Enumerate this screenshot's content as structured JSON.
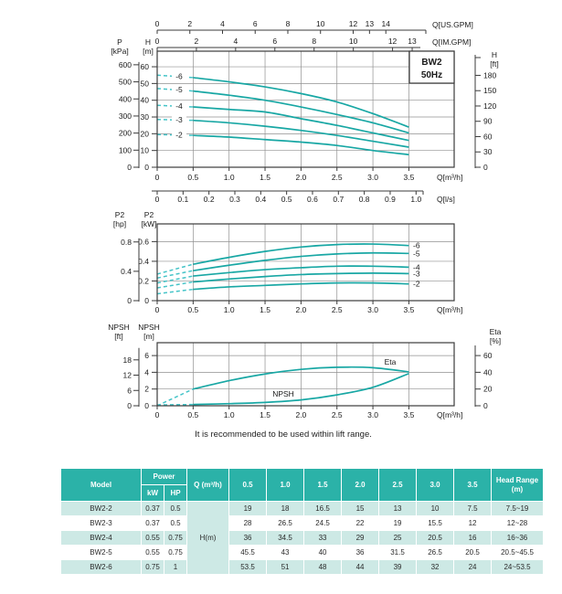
{
  "footnote": "It is recommended to be used within lift range.",
  "title_box": {
    "line1": "BW2",
    "line2": "50Hz"
  },
  "colors": {
    "curve": "#18A7A4",
    "curve_dashed": "#45C4C8",
    "grid": "#909090",
    "frame": "#3b3b3b",
    "text": "#1a1a1a",
    "table_header_bg": "#2BB2A8",
    "table_row_alt_bg": "#CDE9E5"
  },
  "chart_data": [
    {
      "type": "line",
      "name": "head-curves",
      "title": "BW2 50Hz",
      "x_label": "Q[m³/h]",
      "x_ticks": [
        0,
        0.5,
        1.0,
        1.5,
        2.0,
        2.5,
        3.0,
        3.5
      ],
      "x_tick_labels": [
        "0",
        "0.5",
        "1.0",
        "1.5",
        "2.0",
        "2.5",
        "3.0",
        "3.5"
      ],
      "xlim": [
        0,
        4.13
      ],
      "y_axis_m": {
        "header_top": "H",
        "header_bottom": "[m]",
        "ticks": [
          0,
          10,
          20,
          30,
          40,
          50,
          60
        ],
        "ylim": [
          0,
          69.3
        ]
      },
      "y_axis_kpa": {
        "header_top": "P",
        "header_bottom": "[kPa]",
        "ticks": [
          0,
          100,
          200,
          300,
          400,
          500,
          600
        ]
      },
      "y_axis_ft": {
        "header_top": "H",
        "header_bottom": "[ft]",
        "ticks": [
          0,
          30,
          60,
          90,
          120,
          150,
          180
        ]
      },
      "top_axis_usgpm": {
        "label": "Q[US.GPM]",
        "ticks": [
          0,
          2,
          4,
          6,
          8,
          10,
          12,
          13,
          14
        ]
      },
      "top_axis_imgpm": {
        "label": "Q[IM.GPM]",
        "ticks": [
          0,
          2,
          4,
          6,
          8,
          10,
          12,
          13
        ]
      },
      "bottom_axis_ls": {
        "label": "Q[l/s]",
        "tick_labels": [
          "0",
          "0.1",
          "0.2",
          "0.3",
          "0.4",
          "0.5",
          "0.6",
          "0.7",
          "0.8",
          "0.9",
          "1.0"
        ],
        "ticks": [
          0,
          0.1,
          0.2,
          0.3,
          0.4,
          0.5,
          0.6,
          0.7,
          0.8,
          0.9,
          1.0
        ]
      },
      "series": [
        {
          "name": "-6",
          "model": "BW2-6",
          "dashed_until": 0.5,
          "points": [
            [
              0,
              55
            ],
            [
              0.5,
              53.5
            ],
            [
              1,
              51
            ],
            [
              1.5,
              48
            ],
            [
              2,
              44
            ],
            [
              2.5,
              39
            ],
            [
              3,
              32
            ],
            [
              3.5,
              24
            ]
          ]
        },
        {
          "name": "-5",
          "model": "BW2-5",
          "dashed_until": 0.5,
          "points": [
            [
              0,
              47
            ],
            [
              0.5,
              45.5
            ],
            [
              1,
              43
            ],
            [
              1.5,
              40
            ],
            [
              2,
              36
            ],
            [
              2.5,
              31.5
            ],
            [
              3,
              26.5
            ],
            [
              3.5,
              20.5
            ]
          ]
        },
        {
          "name": "-4",
          "model": "BW2-4",
          "dashed_until": 0.5,
          "points": [
            [
              0,
              37
            ],
            [
              0.5,
              36
            ],
            [
              1,
              34.5
            ],
            [
              1.5,
              33
            ],
            [
              2,
              29
            ],
            [
              2.5,
              25
            ],
            [
              3,
              20.5
            ],
            [
              3.5,
              16
            ]
          ]
        },
        {
          "name": "-3",
          "model": "BW2-3",
          "dashed_until": 0.5,
          "points": [
            [
              0,
              28.5
            ],
            [
              0.5,
              28
            ],
            [
              1,
              26.5
            ],
            [
              1.5,
              24.5
            ],
            [
              2,
              22
            ],
            [
              2.5,
              19
            ],
            [
              3,
              15.5
            ],
            [
              3.5,
              12
            ]
          ]
        },
        {
          "name": "-2",
          "model": "BW2-2",
          "dashed_until": 0.5,
          "points": [
            [
              0,
              19.5
            ],
            [
              0.5,
              19
            ],
            [
              1,
              18
            ],
            [
              1.5,
              16.5
            ],
            [
              2,
              15
            ],
            [
              2.5,
              13
            ],
            [
              3,
              10
            ],
            [
              3.5,
              7.5
            ]
          ]
        }
      ]
    },
    {
      "type": "line",
      "name": "power-curves",
      "x_label": "Q[m³/h]",
      "x_ticks": [
        0,
        0.5,
        1.0,
        1.5,
        2.0,
        2.5,
        3.0,
        3.5
      ],
      "x_tick_labels": [
        "0",
        "0.5",
        "1.0",
        "1.5",
        "2.0",
        "2.5",
        "3.0",
        "3.5"
      ],
      "xlim": [
        0,
        4.13
      ],
      "y_axis_kw": {
        "header_top": "P2",
        "header_bottom": "[kW]",
        "ticks": [
          0,
          0.2,
          0.4,
          0.6
        ],
        "ylim": [
          0,
          0.78
        ]
      },
      "y_axis_hp": {
        "header_top": "P2",
        "header_bottom": "[hp]",
        "ticks": [
          0,
          0.4,
          0.8
        ]
      },
      "series": [
        {
          "name": "-6",
          "model": "BW2-6",
          "dashed_until": 0.5,
          "points": [
            [
              0,
              0.27
            ],
            [
              0.5,
              0.37
            ],
            [
              1,
              0.44
            ],
            [
              1.5,
              0.5
            ],
            [
              2,
              0.545
            ],
            [
              2.5,
              0.57
            ],
            [
              3,
              0.575
            ],
            [
              3.5,
              0.56
            ]
          ]
        },
        {
          "name": "-5",
          "model": "BW2-5",
          "dashed_until": 0.5,
          "points": [
            [
              0,
              0.23
            ],
            [
              0.5,
              0.305
            ],
            [
              1,
              0.36
            ],
            [
              1.5,
              0.41
            ],
            [
              2,
              0.45
            ],
            [
              2.5,
              0.475
            ],
            [
              3,
              0.485
            ],
            [
              3.5,
              0.48
            ]
          ]
        },
        {
          "name": "-4",
          "model": "BW2-4",
          "dashed_until": 0.5,
          "points": [
            [
              0,
              0.18
            ],
            [
              0.5,
              0.25
            ],
            [
              1,
              0.285
            ],
            [
              1.5,
              0.315
            ],
            [
              2,
              0.335
            ],
            [
              2.5,
              0.35
            ],
            [
              3,
              0.35
            ],
            [
              3.5,
              0.34
            ]
          ]
        },
        {
          "name": "-3",
          "model": "BW2-3",
          "dashed_until": 0.5,
          "points": [
            [
              0,
              0.13
            ],
            [
              0.5,
              0.19
            ],
            [
              1,
              0.22
            ],
            [
              1.5,
              0.245
            ],
            [
              2,
              0.265
            ],
            [
              2.5,
              0.275
            ],
            [
              3,
              0.28
            ],
            [
              3.5,
              0.275
            ]
          ]
        },
        {
          "name": "-2",
          "model": "BW2-2",
          "dashed_until": 0.5,
          "points": [
            [
              0,
              0.07
            ],
            [
              0.5,
              0.115
            ],
            [
              1,
              0.14
            ],
            [
              1.5,
              0.155
            ],
            [
              2,
              0.17
            ],
            [
              2.5,
              0.18
            ],
            [
              3,
              0.18
            ],
            [
              3.5,
              0.17
            ]
          ]
        }
      ]
    },
    {
      "type": "line",
      "name": "npsh-eta-curves",
      "x_label": "Q[m³/h]",
      "x_ticks": [
        0,
        0.5,
        1.0,
        1.5,
        2.0,
        2.5,
        3.0,
        3.5
      ],
      "x_tick_labels": [
        "0",
        "0.5",
        "1.0",
        "1.5",
        "2.0",
        "2.5",
        "3.0",
        "3.5"
      ],
      "xlim": [
        0,
        4.13
      ],
      "y_axis_m": {
        "header_top": "NPSH",
        "header_bottom": "[m]",
        "ticks": [
          0,
          2,
          4,
          6
        ],
        "ylim": [
          0,
          7.54
        ]
      },
      "y_axis_ft": {
        "header_top": "NPSH",
        "header_bottom": "[ft]",
        "ticks": [
          0,
          6,
          12,
          18
        ]
      },
      "y_axis_eta": {
        "header_top": "Eta",
        "header_bottom": "[%]",
        "ticks": [
          0,
          20,
          40,
          60
        ]
      },
      "series": [
        {
          "name": "Eta",
          "unit": "%",
          "dashed_until": 0.5,
          "points": [
            [
              0,
              0
            ],
            [
              0.5,
              20
            ],
            [
              1,
              30
            ],
            [
              1.5,
              38
            ],
            [
              2,
              43.5
            ],
            [
              2.5,
              46
            ],
            [
              3,
              45.5
            ],
            [
              3.5,
              40.5
            ]
          ]
        },
        {
          "name": "NPSH",
          "unit": "m",
          "dashed_until": 0.5,
          "points": [
            [
              0,
              0.1
            ],
            [
              0.5,
              0.15
            ],
            [
              1,
              0.25
            ],
            [
              1.5,
              0.4
            ],
            [
              2,
              0.7
            ],
            [
              2.5,
              1.3
            ],
            [
              3,
              2.2
            ],
            [
              3.5,
              3.85
            ]
          ]
        }
      ]
    }
  ],
  "table": {
    "header": {
      "model": "Model",
      "power": "Power",
      "kw": "kW",
      "hp": "HP",
      "q": "Q (m³/h)",
      "flows": [
        "0.5",
        "1.0",
        "1.5",
        "2.0",
        "2.5",
        "3.0",
        "3.5"
      ],
      "head_range": "Head Range (m)"
    },
    "q_body_label": "H(m)",
    "rows": [
      {
        "model": "BW2-2",
        "kw": "0.37",
        "hp": "0.5",
        "values": [
          "19",
          "18",
          "16.5",
          "15",
          "13",
          "10",
          "7.5"
        ],
        "head_range": "7.5~19"
      },
      {
        "model": "BW2-3",
        "kw": "0.37",
        "hp": "0.5",
        "values": [
          "28",
          "26.5",
          "24.5",
          "22",
          "19",
          "15.5",
          "12"
        ],
        "head_range": "12~28"
      },
      {
        "model": "BW2-4",
        "kw": "0.55",
        "hp": "0.75",
        "values": [
          "36",
          "34.5",
          "33",
          "29",
          "25",
          "20.5",
          "16"
        ],
        "head_range": "16~36"
      },
      {
        "model": "BW2-5",
        "kw": "0.55",
        "hp": "0.75",
        "values": [
          "45.5",
          "43",
          "40",
          "36",
          "31.5",
          "26.5",
          "20.5"
        ],
        "head_range": "20.5~45.5"
      },
      {
        "model": "BW2-6",
        "kw": "0.75",
        "hp": "1",
        "values": [
          "53.5",
          "51",
          "48",
          "44",
          "39",
          "32",
          "24"
        ],
        "head_range": "24~53.5"
      }
    ]
  }
}
